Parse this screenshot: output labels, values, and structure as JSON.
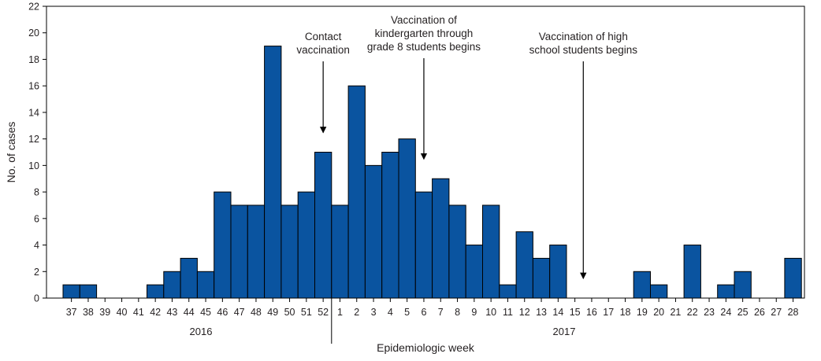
{
  "chart_data": {
    "type": "bar",
    "ylabel": "No. of cases",
    "xlabel": "Epidemiologic week",
    "ylim": [
      0,
      22
    ],
    "yticks": [
      0,
      2,
      4,
      6,
      8,
      10,
      12,
      14,
      16,
      18,
      20,
      22
    ],
    "grid": false,
    "categories": [
      "37",
      "38",
      "39",
      "40",
      "41",
      "42",
      "43",
      "44",
      "45",
      "46",
      "47",
      "48",
      "49",
      "50",
      "51",
      "52",
      "1",
      "2",
      "3",
      "4",
      "5",
      "6",
      "7",
      "8",
      "9",
      "10",
      "11",
      "12",
      "13",
      "14",
      "15",
      "16",
      "17",
      "18",
      "19",
      "20",
      "21",
      "22",
      "23",
      "24",
      "25",
      "26",
      "27",
      "28"
    ],
    "values": [
      1,
      1,
      0,
      0,
      0,
      1,
      2,
      3,
      2,
      8,
      7,
      7,
      19,
      7,
      8,
      11,
      7,
      16,
      10,
      11,
      12,
      8,
      9,
      7,
      4,
      7,
      1,
      5,
      3,
      4,
      0,
      0,
      0,
      0,
      2,
      1,
      0,
      4,
      0,
      1,
      2,
      0,
      0,
      3
    ],
    "year_groups": [
      {
        "label": "2016",
        "from_index": 0,
        "to_index": 15
      },
      {
        "label": "2017",
        "from_index": 16,
        "to_index": 43
      }
    ],
    "annotations": [
      {
        "lines": [
          "Contact",
          "vaccination"
        ],
        "between_index": 15.5,
        "arrow_to": 12
      },
      {
        "lines": [
          "Vaccination of",
          "kindergarten through",
          "grade 8 students begins"
        ],
        "between_index": 21.5,
        "arrow_to": 10
      },
      {
        "lines": [
          "Vaccination of high",
          "school students begins"
        ],
        "between_index": 31,
        "arrow_to": 1
      }
    ]
  }
}
